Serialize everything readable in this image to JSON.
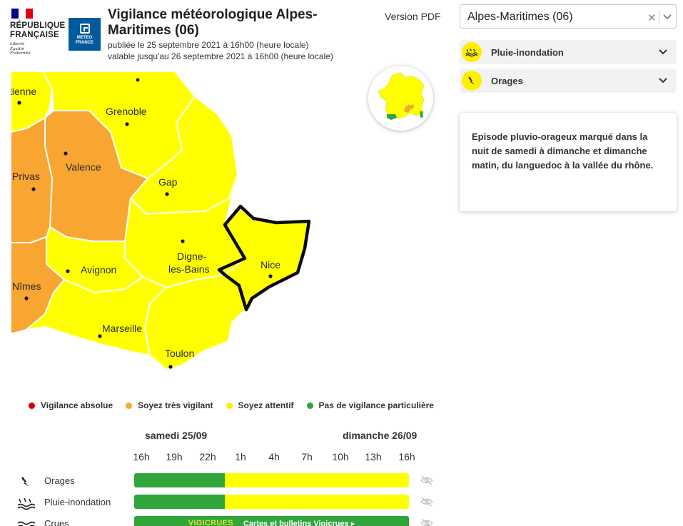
{
  "header": {
    "republic_line1": "RÉPUBLIQUE",
    "republic_line2": "FRANÇAISE",
    "motto_1": "Liberté",
    "motto_2": "Égalité",
    "motto_3": "Fraternité",
    "meteo_line1": "METEO",
    "meteo_line2": "FRANCE",
    "title": "Vigilance météorologique Alpes-Maritimes  (06)",
    "published": "publiée le 25 septembre 2021 à 16h00 (heure locale)",
    "valid_until": "valable jusqu'au 26 septembre 2021 à 16h00 (heure locale)",
    "version_pdf": "Version PDF"
  },
  "colors": {
    "yellow": "#ffff00",
    "orange": "#f9a531",
    "red": "#cc0000",
    "green": "#2fa53c",
    "panel_bg": "#f2f2f2"
  },
  "map": {
    "cities": [
      "Saint-Étienne",
      "Grenoble",
      "Valence",
      "Privas",
      "Gap",
      "Digne-les-Bains",
      "Avignon",
      "Nice",
      "Nîmes",
      "Marseille",
      "Toulon"
    ],
    "labels": {
      "etienne": "tienne",
      "grenoble": "Grenoble",
      "valence": "Valence",
      "privas": "Privas",
      "gap": "Gap",
      "digne_1": "Digne-",
      "digne_2": "les-Bains",
      "avignon": "Avignon",
      "nice": "Nice",
      "nimes": "Nîmes",
      "marseille": "Marseille",
      "toulon": "Toulon"
    },
    "selected_department": "Alpes-Maritimes"
  },
  "legend": [
    {
      "label": "Vigilance absolue",
      "color": "#d40000"
    },
    {
      "label": "Soyez très vigilant",
      "color": "#f9a531"
    },
    {
      "label": "Soyez attentif",
      "color": "#ffff00"
    },
    {
      "label": "Pas de vigilance particulière",
      "color": "#2fa53c"
    }
  ],
  "timeline": {
    "day1": "samedi 25/09",
    "day2": "dimanche 26/09",
    "hours": [
      "16h",
      "19h",
      "22h",
      "1h",
      "4h",
      "7h",
      "10h",
      "13h",
      "16h"
    ],
    "rows": [
      {
        "label": "Orages",
        "icon": "lightning-icon",
        "green_until_fraction": 0.33
      },
      {
        "label": "Pluie-inondation",
        "icon": "rain-flood-icon",
        "green_until_fraction": 0.33
      },
      {
        "label": "Crues",
        "icon": "waves-icon"
      }
    ],
    "crues_brand": "VIGICRUES",
    "crues_link": "Cartes et bulletins Vigicrues ▸"
  },
  "panel": {
    "dept_value": "Alpes-Maritimes  (06)",
    "risks": [
      {
        "label": "Pluie-inondation",
        "icon": "rain-flood-icon"
      },
      {
        "label": "Orages",
        "icon": "lightning-icon"
      }
    ],
    "info_text": "Episode pluvio-orageux marqué dans la nuit de samedi à dimanche et dimanche matin, du languedoc à la vallée du rhône."
  }
}
